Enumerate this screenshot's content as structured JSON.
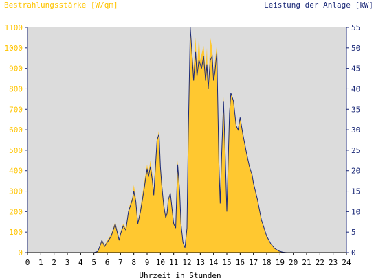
{
  "chart_data": {
    "type": "area",
    "ylabel_left": "Bestrahlungsstärke [W/qm]",
    "ylabel_right": "Leistung der Anlage [kW]",
    "xlabel": "Uhrzeit in Stunden",
    "xlim": [
      0,
      24
    ],
    "ylim_left": [
      0,
      1100
    ],
    "ylim_right": [
      0,
      55
    ],
    "x_ticks": [
      "0",
      "1",
      "2",
      "3",
      "4",
      "5",
      "6",
      "7",
      "8",
      "9",
      "10",
      "11",
      "12",
      "13",
      "14",
      "15",
      "16",
      "17",
      "18",
      "19",
      "20",
      "21",
      "22",
      "23",
      "24"
    ],
    "y_left_ticks": [
      "0",
      "100",
      "200",
      "300",
      "400",
      "500",
      "600",
      "700",
      "800",
      "900",
      "1000",
      "1100"
    ],
    "y_right_ticks": [
      "0",
      "5",
      "10",
      "15",
      "20",
      "25",
      "30",
      "35",
      "40",
      "45",
      "50",
      "55"
    ],
    "grid": false,
    "colors": {
      "irradiance": "#ffc830",
      "power": "#1c2a78",
      "plot_bg": "#dcdcdc",
      "left_axis_text": "#ffc400",
      "right_axis_text": "#1c2a78"
    },
    "series": [
      {
        "name": "Bestrahlungsstärke [W/qm]",
        "axis": "left",
        "x": [
          0,
          5.0,
          5.3,
          5.5,
          5.6,
          5.8,
          6.0,
          6.3,
          6.6,
          6.75,
          6.9,
          7.0,
          7.2,
          7.4,
          7.6,
          7.75,
          7.9,
          8.0,
          8.15,
          8.3,
          8.5,
          8.75,
          9.0,
          9.1,
          9.25,
          9.4,
          9.5,
          9.6,
          9.75,
          9.9,
          10.0,
          10.1,
          10.25,
          10.4,
          10.5,
          10.6,
          10.75,
          10.9,
          11.0,
          11.15,
          11.3,
          11.45,
          11.55,
          11.7,
          11.85,
          12.0,
          12.1,
          12.25,
          12.35,
          12.5,
          12.65,
          12.75,
          12.9,
          13.0,
          13.1,
          13.25,
          13.4,
          13.5,
          13.6,
          13.75,
          13.9,
          14.0,
          14.1,
          14.25,
          14.4,
          14.5,
          14.6,
          14.75,
          14.85,
          15.0,
          15.1,
          15.2,
          15.3,
          15.5,
          15.7,
          15.85,
          16.0,
          16.2,
          16.5,
          16.7,
          16.9,
          17.0,
          17.3,
          17.6,
          18.0,
          18.3,
          18.6,
          18.9,
          19.2,
          19.5,
          19.8,
          20.0,
          24
        ],
        "values": [
          0,
          0,
          8,
          45,
          65,
          35,
          60,
          90,
          150,
          110,
          60,
          100,
          140,
          120,
          210,
          245,
          270,
          330,
          270,
          150,
          220,
          330,
          430,
          390,
          450,
          380,
          300,
          410,
          550,
          600,
          430,
          350,
          240,
          180,
          200,
          260,
          300,
          210,
          150,
          130,
          450,
          320,
          150,
          50,
          25,
          120,
          590,
          1090,
          1000,
          900,
          1050,
          880,
          1060,
          940,
          970,
          1010,
          890,
          1000,
          780,
          1050,
          1000,
          870,
          930,
          1020,
          500,
          300,
          480,
          760,
          580,
          230,
          430,
          700,
          780,
          740,
          620,
          600,
          660,
          580,
          480,
          420,
          380,
          340,
          260,
          160,
          80,
          45,
          20,
          8,
          3,
          0,
          0,
          0,
          0
        ]
      },
      {
        "name": "Leistung der Anlage [kW]",
        "axis": "right",
        "x": [
          0,
          5.0,
          5.3,
          5.5,
          5.6,
          5.8,
          6.0,
          6.3,
          6.6,
          6.75,
          6.9,
          7.0,
          7.2,
          7.4,
          7.6,
          7.75,
          7.9,
          8.0,
          8.15,
          8.3,
          8.5,
          8.75,
          9.0,
          9.1,
          9.25,
          9.4,
          9.5,
          9.6,
          9.75,
          9.9,
          10.0,
          10.1,
          10.25,
          10.4,
          10.5,
          10.6,
          10.75,
          10.9,
          11.0,
          11.15,
          11.3,
          11.45,
          11.55,
          11.7,
          11.85,
          12.0,
          12.1,
          12.25,
          12.35,
          12.5,
          12.65,
          12.75,
          12.9,
          13.0,
          13.1,
          13.25,
          13.4,
          13.5,
          13.6,
          13.75,
          13.9,
          14.0,
          14.1,
          14.25,
          14.4,
          14.5,
          14.6,
          14.75,
          14.85,
          15.0,
          15.1,
          15.2,
          15.3,
          15.5,
          15.7,
          15.85,
          16.0,
          16.2,
          16.5,
          16.7,
          16.9,
          17.0,
          17.3,
          17.6,
          18.0,
          18.3,
          18.6,
          18.9,
          19.2,
          19.5,
          19.8,
          20.0,
          24
        ],
        "values": [
          0,
          0,
          0.3,
          2,
          3,
          1.5,
          2.5,
          4,
          7,
          5,
          3,
          4.5,
          6.5,
          5.5,
          10,
          11.5,
          13,
          15,
          12.5,
          7,
          10,
          15,
          20.5,
          18.5,
          21,
          17.5,
          14,
          19.5,
          27.5,
          29,
          21,
          16.5,
          11.5,
          8.5,
          9.5,
          13,
          14.5,
          10,
          7,
          6,
          21.5,
          15,
          7,
          2.5,
          1.2,
          6,
          29,
          55,
          50,
          42,
          49,
          43,
          47,
          46,
          45,
          48,
          42,
          46,
          40,
          47,
          48,
          42,
          44,
          49,
          22,
          12,
          23,
          37,
          27,
          10,
          22,
          34,
          39,
          37,
          31,
          30,
          33,
          29,
          24,
          21,
          19,
          17,
          13,
          8,
          4,
          2.2,
          1,
          0.4,
          0.1,
          0,
          0,
          0,
          0
        ]
      }
    ]
  }
}
